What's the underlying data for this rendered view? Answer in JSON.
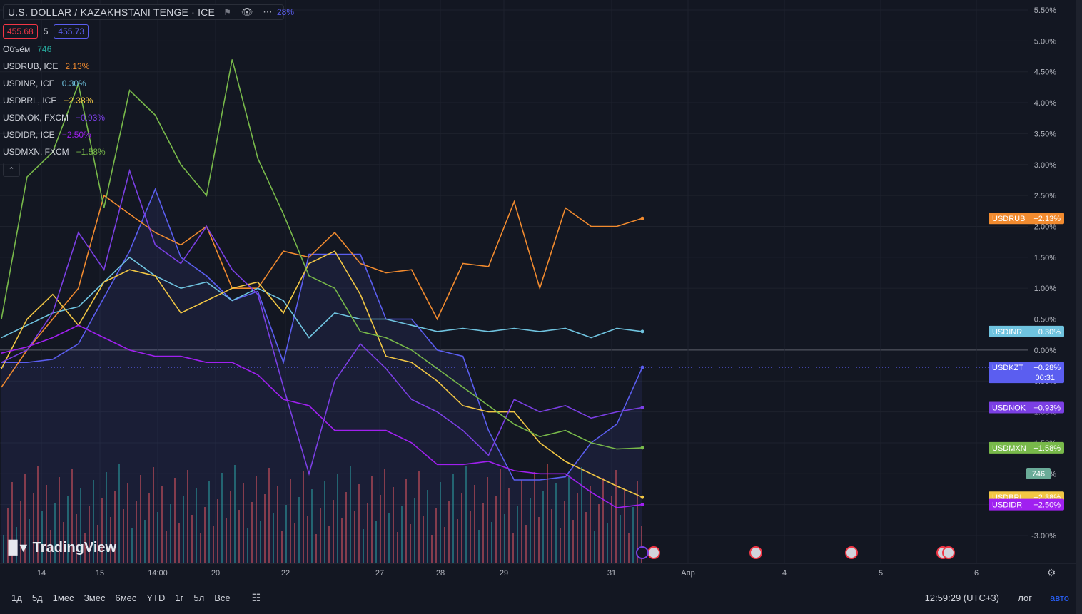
{
  "header": {
    "title": "U.S. DOLLAR / KAZAKHSTANI TENGE · ICE",
    "title_pct_tail": "28%",
    "bid": "455.68",
    "spread": "5",
    "ask": "455.73",
    "volume_label": "Объём",
    "volume_value": "746"
  },
  "legend_items": [
    {
      "name": "USDRUB, ICE",
      "value": "2.13%",
      "color": "#f28b2f"
    },
    {
      "name": "USDINR, ICE",
      "value": "0.30%",
      "color": "#6fc3df"
    },
    {
      "name": "USDBRL, ICE",
      "value": "−2.38%",
      "color": "#f2c744"
    },
    {
      "name": "USDNOK, FXCM",
      "value": "−0.93%",
      "color": "#7b3fe4"
    },
    {
      "name": "USDIDR, ICE",
      "value": "−2.50%",
      "color": "#a020f0"
    },
    {
      "name": "USDMXN, FXCM",
      "value": "−1.58%",
      "color": "#78b94a"
    }
  ],
  "logo_text": "TradingView",
  "bottom_bar": {
    "timeframes": [
      "1д",
      "5д",
      "1мес",
      "3мес",
      "6мес",
      "YTD",
      "1г",
      "5л",
      "Все"
    ],
    "clock": "12:59:29 (UTC+3)",
    "log": "лог",
    "auto": "авто"
  },
  "chart_data": {
    "type": "line",
    "ylabel": "",
    "xlabel": "",
    "y_scale": "percent",
    "ylim": [
      -3.2,
      5.6
    ],
    "y_ticks": [
      "5.50%",
      "5.00%",
      "4.50%",
      "4.00%",
      "3.50%",
      "3.00%",
      "2.50%",
      "2.00%",
      "1.50%",
      "1.00%",
      "0.50%",
      "0.00%",
      "-0.50%",
      "-1.00%",
      "-1.50%",
      "-2.00%",
      "-2.50%",
      "-3.00%"
    ],
    "x_ticks": [
      "14",
      "15",
      "14:00",
      "20",
      "22",
      "27",
      "28",
      "29",
      "31",
      "Апр",
      "4",
      "5",
      "6"
    ],
    "grid": true,
    "legend": "top-left",
    "series": [
      {
        "name": "USDKZT",
        "color": "#5b5ef0",
        "label": "−0.28%",
        "countdown": "00:31",
        "values": [
          -0.2,
          -0.2,
          -0.15,
          0.1,
          0.85,
          1.6,
          2.6,
          1.5,
          1.2,
          0.8,
          0.95,
          -0.2,
          1.55,
          1.55,
          1.55,
          0.5,
          0.5,
          0.0,
          -0.1,
          -1.3,
          -2.1,
          -2.1,
          -2.05,
          -1.5,
          -1.2,
          -0.28
        ]
      },
      {
        "name": "USDRUB",
        "color": "#f28b2f",
        "label": "+2.13%",
        "values": [
          -0.6,
          0.0,
          0.5,
          1.0,
          2.5,
          2.2,
          1.9,
          1.7,
          2.0,
          1.0,
          1.0,
          1.6,
          1.5,
          1.9,
          1.4,
          1.25,
          1.3,
          0.5,
          1.4,
          1.35,
          2.4,
          1.0,
          2.3,
          2.0,
          2.0,
          2.13
        ]
      },
      {
        "name": "USDINR",
        "color": "#6fc3df",
        "label": "+0.30%",
        "values": [
          0.2,
          0.4,
          0.6,
          0.7,
          1.1,
          1.5,
          1.2,
          1.0,
          1.1,
          0.8,
          1.0,
          0.8,
          0.2,
          0.6,
          0.5,
          0.5,
          0.4,
          0.3,
          0.35,
          0.3,
          0.35,
          0.3,
          0.35,
          0.2,
          0.35,
          0.3
        ]
      },
      {
        "name": "USDBRL",
        "color": "#f2c744",
        "label": "−2.38%",
        "values": [
          -0.3,
          0.5,
          0.9,
          0.4,
          1.1,
          1.3,
          1.2,
          0.6,
          0.8,
          1.0,
          1.1,
          0.6,
          1.4,
          1.6,
          0.9,
          -0.1,
          -0.2,
          -0.5,
          -0.9,
          -1.0,
          -1.0,
          -1.5,
          -1.8,
          -2.0,
          -2.2,
          -2.38
        ]
      },
      {
        "name": "USDNOK",
        "color": "#7b3fe4",
        "label": "−0.93%",
        "values": [
          -0.2,
          0.0,
          0.6,
          1.9,
          1.3,
          2.9,
          1.7,
          1.4,
          2.0,
          1.3,
          0.9,
          -0.6,
          -2.0,
          -0.5,
          0.1,
          -0.3,
          -0.8,
          -1.0,
          -1.3,
          -1.7,
          -0.8,
          -1.0,
          -0.9,
          -1.1,
          -1.0,
          -0.93
        ]
      },
      {
        "name": "USDIDR",
        "color": "#a020f0",
        "label": "−2.50%",
        "values": [
          -0.05,
          0.05,
          0.2,
          0.4,
          0.2,
          0.0,
          -0.1,
          -0.1,
          -0.2,
          -0.2,
          -0.4,
          -0.8,
          -0.9,
          -1.3,
          -1.3,
          -1.3,
          -1.5,
          -1.85,
          -1.85,
          -1.8,
          -1.95,
          -2.0,
          -2.0,
          -2.3,
          -2.55,
          -2.5
        ]
      },
      {
        "name": "USDMXN",
        "color": "#78b94a",
        "label": "−1.58%",
        "values": [
          0.5,
          2.8,
          3.2,
          4.3,
          2.3,
          4.2,
          3.8,
          3.0,
          2.5,
          4.7,
          3.1,
          2.2,
          1.2,
          1.0,
          0.3,
          0.2,
          0.0,
          -0.3,
          -0.6,
          -0.9,
          -1.2,
          -1.4,
          -1.3,
          -1.5,
          -1.6,
          -1.58
        ]
      }
    ],
    "last_volume_label": "746"
  }
}
